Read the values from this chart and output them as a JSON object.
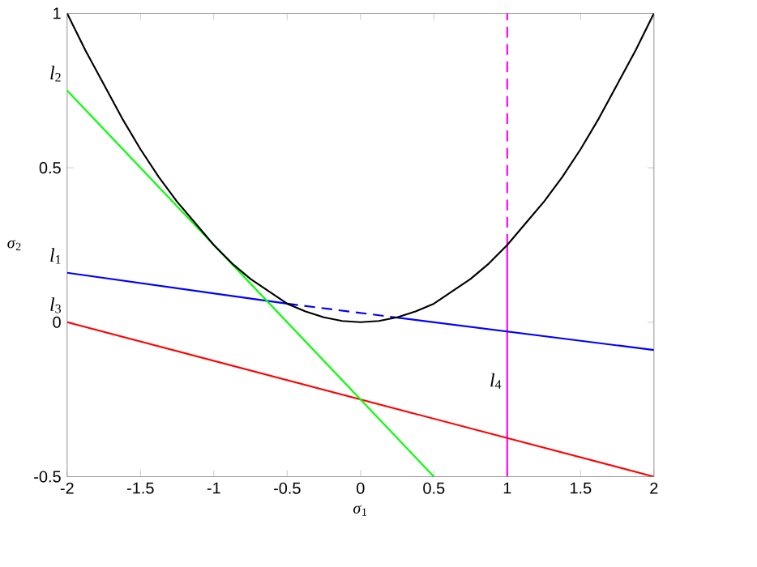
{
  "chart_data": {
    "type": "line",
    "xlabel": "*σ*$_{1}$",
    "ylabel": "*σ*$_{2}$",
    "xlim": [
      -2,
      2
    ],
    "ylim": [
      -0.5,
      1
    ],
    "xticks": [
      -2,
      -1.5,
      -1,
      -0.5,
      0,
      0.5,
      1,
      1.5,
      2
    ],
    "yticks": [
      -0.5,
      0,
      0.5,
      1
    ],
    "grid": false,
    "legend": false,
    "marker": "none",
    "series": [
      {
        "color": "#000000",
        "line_style": "solid",
        "x": [
          -2,
          -1.875,
          -1.75,
          -1.625,
          -1.5,
          -1.375,
          -1.25,
          -1.125,
          -1,
          -0.875,
          -0.75,
          -0.625,
          -0.5,
          -0.375,
          -0.25,
          -0.125,
          0,
          0.125,
          0.25,
          0.375,
          0.5,
          0.625,
          0.75,
          0.875,
          1,
          1.125,
          1.25,
          1.375,
          1.5,
          1.625,
          1.75,
          1.875,
          2
        ],
        "values": [
          1,
          0.88,
          0.77,
          0.66,
          0.56,
          0.47,
          0.39,
          0.32,
          0.25,
          0.19,
          0.14,
          0.1,
          0.06,
          0.035,
          0.016,
          0.004,
          0,
          0.004,
          0.016,
          0.035,
          0.06,
          0.1,
          0.14,
          0.19,
          0.25,
          0.32,
          0.39,
          0.47,
          0.56,
          0.66,
          0.77,
          0.88,
          1
        ]
      },
      {
        "name": "*l*$_{2}$",
        "color": "#00ff00",
        "line_style": "solid",
        "x": [
          -2,
          0.5
        ],
        "values": [
          0.75,
          -0.5
        ]
      },
      {
        "name": "*l*$_{1}$",
        "color": "#0000ff",
        "line_style": "solid",
        "x": [
          -2,
          -0.5
        ],
        "values": [
          0.16,
          0.06
        ]
      },
      {
        "color": "#0000ff",
        "line_style": "dashed",
        "x": [
          -0.5,
          0.25
        ],
        "values": [
          0.06,
          0.015
        ]
      },
      {
        "color": "#0000ff",
        "line_style": "solid",
        "x": [
          0.25,
          2
        ],
        "values": [
          0.015,
          -0.09
        ]
      },
      {
        "name": "*l*$_{3}$",
        "color": "#ff0000",
        "line_style": "solid",
        "x": [
          -2,
          2
        ],
        "values": [
          0,
          -0.5
        ]
      },
      {
        "color": "#ff00ff",
        "line_style": "solid",
        "x": [
          1,
          1
        ],
        "values": [
          -0.5,
          0.25
        ]
      },
      {
        "color": "#ff00ff",
        "line_style": "dashed",
        "x": [
          1,
          1
        ],
        "values": [
          0.25,
          1
        ]
      }
    ],
    "annotations": [
      {
        "text": "*l*$_{4}$",
        "x": 1,
        "y": -0.19
      }
    ]
  }
}
